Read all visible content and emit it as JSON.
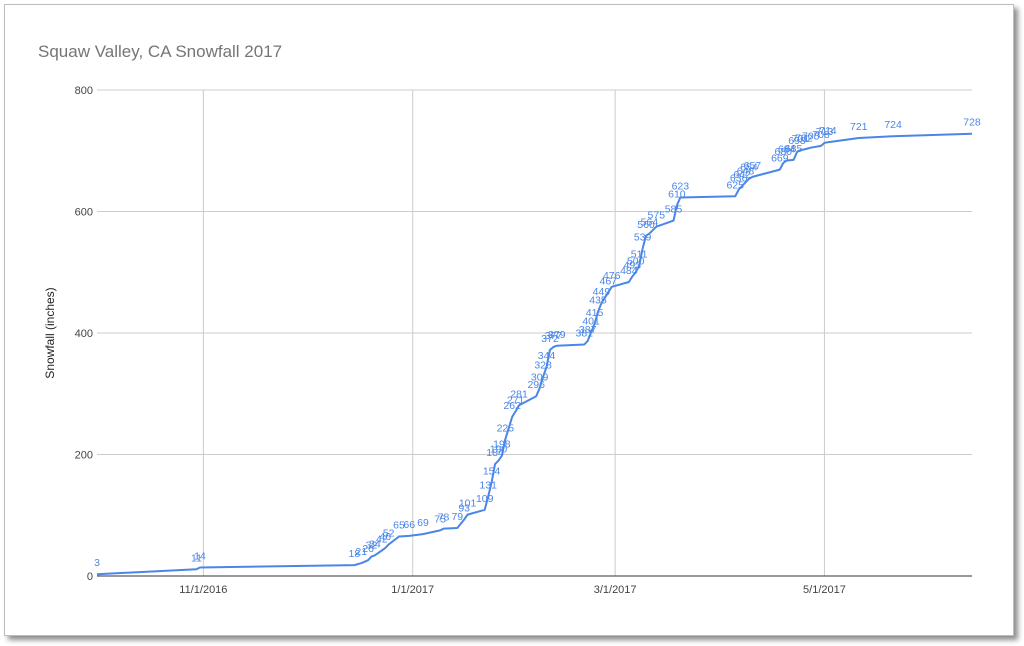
{
  "chart_data": {
    "type": "line",
    "title": "Squaw Valley, CA Snowfall 2017",
    "xlabel": "",
    "ylabel": "Snowfall (inches)",
    "ylim": [
      0,
      800
    ],
    "xlim": [
      "2016-10-01",
      "2017-06-13"
    ],
    "y_ticks": [
      "0",
      "200",
      "400",
      "600",
      "800"
    ],
    "x_ticks": [
      {
        "date": "2016-11-01",
        "label": "11/1/2016"
      },
      {
        "date": "2017-01-01",
        "label": "1/1/2017"
      },
      {
        "date": "2017-03-01",
        "label": "3/1/2017"
      },
      {
        "date": "2017-05-01",
        "label": "5/1/2017"
      }
    ],
    "grid": true,
    "legend": "none",
    "colors": {
      "line": "#4a86e8",
      "grid": "#cccccc",
      "axis": "#333333"
    },
    "series": [
      {
        "points": [
          {
            "x": "2016-10-01",
            "y": 3
          },
          {
            "x": "2016-10-30",
            "y": 11
          },
          {
            "x": "2016-10-31",
            "y": 14
          },
          {
            "x": "2016-12-15",
            "y": 18
          },
          {
            "x": "2016-12-17",
            "y": 21
          },
          {
            "x": "2016-12-19",
            "y": 26
          },
          {
            "x": "2016-12-20",
            "y": 32
          },
          {
            "x": "2016-12-21",
            "y": 34
          },
          {
            "x": "2016-12-23",
            "y": 42
          },
          {
            "x": "2016-12-24",
            "y": 46
          },
          {
            "x": "2016-12-25",
            "y": 52
          },
          {
            "x": "2016-12-28",
            "y": 65
          },
          {
            "x": "2016-12-31",
            "y": 66
          },
          {
            "x": "2017-01-04",
            "y": 69
          },
          {
            "x": "2017-01-09",
            "y": 75
          },
          {
            "x": "2017-01-10",
            "y": 78
          },
          {
            "x": "2017-01-14",
            "y": 79
          },
          {
            "x": "2017-01-16",
            "y": 93
          },
          {
            "x": "2017-01-17",
            "y": 101
          },
          {
            "x": "2017-01-22",
            "y": 109
          },
          {
            "x": "2017-01-23",
            "y": 131
          },
          {
            "x": "2017-01-24",
            "y": 154
          },
          {
            "x": "2017-01-25",
            "y": 184
          },
          {
            "x": "2017-01-26",
            "y": 190
          },
          {
            "x": "2017-01-27",
            "y": 198
          },
          {
            "x": "2017-01-28",
            "y": 225
          },
          {
            "x": "2017-01-30",
            "y": 262
          },
          {
            "x": "2017-01-31",
            "y": 271
          },
          {
            "x": "2017-02-01",
            "y": 281
          },
          {
            "x": "2017-02-06",
            "y": 296
          },
          {
            "x": "2017-02-07",
            "y": 309
          },
          {
            "x": "2017-02-08",
            "y": 328
          },
          {
            "x": "2017-02-09",
            "y": 344
          },
          {
            "x": "2017-02-10",
            "y": 372
          },
          {
            "x": "2017-02-11",
            "y": 377
          },
          {
            "x": "2017-02-12",
            "y": 379
          },
          {
            "x": "2017-02-20",
            "y": 381
          },
          {
            "x": "2017-02-21",
            "y": 387
          },
          {
            "x": "2017-02-22",
            "y": 401
          },
          {
            "x": "2017-02-23",
            "y": 415
          },
          {
            "x": "2017-02-24",
            "y": 435
          },
          {
            "x": "2017-02-25",
            "y": 449
          },
          {
            "x": "2017-02-27",
            "y": 467
          },
          {
            "x": "2017-02-28",
            "y": 476
          },
          {
            "x": "2017-03-05",
            "y": 484
          },
          {
            "x": "2017-03-06",
            "y": 493
          },
          {
            "x": "2017-03-07",
            "y": 500
          },
          {
            "x": "2017-03-08",
            "y": 511
          },
          {
            "x": "2017-03-09",
            "y": 539
          },
          {
            "x": "2017-03-10",
            "y": 560
          },
          {
            "x": "2017-03-11",
            "y": 564
          },
          {
            "x": "2017-03-13",
            "y": 575
          },
          {
            "x": "2017-03-18",
            "y": 585
          },
          {
            "x": "2017-03-19",
            "y": 610
          },
          {
            "x": "2017-03-20",
            "y": 623
          },
          {
            "x": "2017-04-05",
            "y": 625
          },
          {
            "x": "2017-04-06",
            "y": 636
          },
          {
            "x": "2017-04-07",
            "y": 642
          },
          {
            "x": "2017-04-08",
            "y": 648
          },
          {
            "x": "2017-04-09",
            "y": 654
          },
          {
            "x": "2017-04-10",
            "y": 657
          },
          {
            "x": "2017-04-18",
            "y": 669
          },
          {
            "x": "2017-04-19",
            "y": 680
          },
          {
            "x": "2017-04-20",
            "y": 684
          },
          {
            "x": "2017-04-22",
            "y": 685
          },
          {
            "x": "2017-04-23",
            "y": 698
          },
          {
            "x": "2017-04-24",
            "y": 701
          },
          {
            "x": "2017-04-25",
            "y": 702
          },
          {
            "x": "2017-04-27",
            "y": 705
          },
          {
            "x": "2017-04-30",
            "y": 708
          },
          {
            "x": "2017-05-01",
            "y": 713
          },
          {
            "x": "2017-05-02",
            "y": 714
          },
          {
            "x": "2017-05-11",
            "y": 721
          },
          {
            "x": "2017-05-21",
            "y": 724
          },
          {
            "x": "2017-06-13",
            "y": 728
          }
        ]
      }
    ]
  }
}
